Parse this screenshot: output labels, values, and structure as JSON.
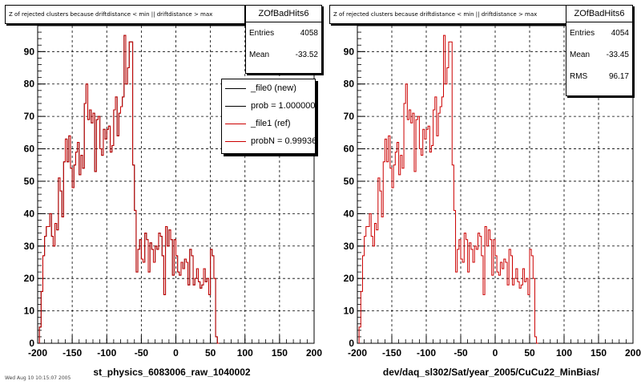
{
  "chart_data": [
    {
      "type": "histogram",
      "title": "Z of rejected clusters because driftdistance < min || driftdistance > max",
      "xlabel": "st_physics_6083006_raw_1040002",
      "xlim": [
        -200,
        200
      ],
      "ylim": [
        0,
        98
      ],
      "x_ticks": [
        "-200",
        "-150",
        "-100",
        "-50",
        "0",
        "50",
        "100",
        "150",
        "200"
      ],
      "y_ticks": [
        "0",
        "10",
        "20",
        "30",
        "40",
        "50",
        "60",
        "70",
        "80",
        "90"
      ],
      "grid": true,
      "bin_width": 2.5,
      "bin_start": -197.5,
      "stats": {
        "name": "ZOfBadHits6",
        "rows": [
          {
            "label": "Entries",
            "value": "4058"
          },
          {
            "label": "Mean",
            "value": "-33.52"
          }
        ]
      },
      "legend": [
        {
          "label": "_file0 (new)",
          "color": "#000000"
        },
        {
          "label": "prob = 1.000000",
          "color": "#000000"
        },
        {
          "label": "_file1 (ref)",
          "color": "#cc0000"
        },
        {
          "label": "probN = 0.99936",
          "color": "#cc0000"
        }
      ],
      "series": [
        {
          "name": "_file1 (ref)",
          "color": "#cc0000",
          "values": [
            5,
            16,
            27,
            33,
            36,
            36,
            40,
            33,
            30,
            37,
            35,
            51,
            47,
            39,
            56,
            63,
            56,
            64,
            54,
            48,
            55,
            59,
            62,
            52,
            58,
            54,
            74,
            80,
            69,
            72,
            68,
            71,
            53,
            69,
            70,
            60,
            58,
            66,
            63,
            66,
            67,
            59,
            61,
            72,
            76,
            64,
            71,
            73,
            76,
            95,
            80,
            85,
            93,
            93,
            55,
            41,
            22,
            29,
            32,
            26,
            25,
            34,
            32,
            22,
            31,
            29,
            25,
            30,
            29,
            34,
            33,
            27,
            15,
            36,
            30,
            35,
            32,
            21,
            32,
            27,
            22,
            21,
            25,
            23,
            26,
            25,
            18,
            29,
            27,
            18,
            20,
            23,
            19,
            17,
            18,
            23,
            19,
            20,
            15,
            29,
            27,
            20,
            2,
            0
          ]
        },
        {
          "name": "_file0 (new)",
          "color": "#000000",
          "values": [
            5,
            16,
            27,
            33,
            36,
            36,
            40,
            33,
            30,
            37,
            35,
            51,
            47,
            39,
            56,
            63,
            56,
            64,
            54,
            48,
            55,
            59,
            62,
            52,
            58,
            54,
            74,
            80,
            69,
            72,
            68,
            71,
            53,
            69,
            70,
            60,
            58,
            66,
            63,
            66,
            67,
            59,
            61,
            72,
            76,
            64,
            71,
            73,
            76,
            95,
            80,
            85,
            93,
            93,
            55,
            41,
            22,
            29,
            32,
            26,
            25,
            34,
            32,
            22,
            31,
            29,
            25,
            30,
            29,
            34,
            33,
            27,
            15,
            36,
            30,
            35,
            32,
            21,
            32,
            27,
            22,
            21,
            25,
            23,
            26,
            25,
            18,
            29,
            27,
            18,
            20,
            23,
            19,
            17,
            18,
            23,
            19,
            20,
            15,
            29,
            27,
            20,
            2,
            0
          ]
        }
      ]
    },
    {
      "type": "histogram",
      "title": "Z of rejected clusters because driftdistance < min || driftdistance > max",
      "xlabel": "dev/daq_sl302/Sat/year_2005/CuCu22_MinBias/",
      "xlim": [
        -200,
        200
      ],
      "ylim": [
        0,
        98
      ],
      "x_ticks": [
        "-200",
        "-150",
        "-100",
        "-50",
        "0",
        "50",
        "100",
        "150",
        "200"
      ],
      "y_ticks": [
        "0",
        "10",
        "20",
        "30",
        "40",
        "50",
        "60",
        "70",
        "80",
        "90"
      ],
      "grid": true,
      "bin_width": 2.5,
      "bin_start": -197.5,
      "stats": {
        "name": "ZOfBadHits6",
        "rows": [
          {
            "label": "Entries",
            "value": "4054"
          },
          {
            "label": "Mean",
            "value": "-33.45"
          },
          {
            "label": "RMS",
            "value": "96.17"
          }
        ]
      },
      "series": [
        {
          "name": "ref",
          "color": "#cc0000",
          "values": [
            5,
            16,
            27,
            33,
            36,
            36,
            40,
            33,
            30,
            37,
            35,
            51,
            47,
            39,
            56,
            63,
            56,
            64,
            54,
            48,
            55,
            59,
            62,
            52,
            58,
            54,
            74,
            80,
            69,
            72,
            68,
            71,
            53,
            69,
            70,
            60,
            58,
            66,
            63,
            66,
            67,
            59,
            61,
            72,
            76,
            64,
            71,
            73,
            76,
            95,
            80,
            85,
            93,
            93,
            55,
            41,
            22,
            29,
            32,
            26,
            25,
            34,
            32,
            22,
            31,
            29,
            25,
            30,
            29,
            34,
            33,
            27,
            15,
            36,
            30,
            35,
            32,
            21,
            32,
            27,
            22,
            21,
            25,
            23,
            26,
            25,
            18,
            29,
            27,
            18,
            20,
            23,
            19,
            17,
            18,
            23,
            19,
            20,
            15,
            29,
            27,
            20,
            2,
            0
          ]
        }
      ]
    }
  ],
  "footer": "Wed Aug 10 10:15:07 2005"
}
